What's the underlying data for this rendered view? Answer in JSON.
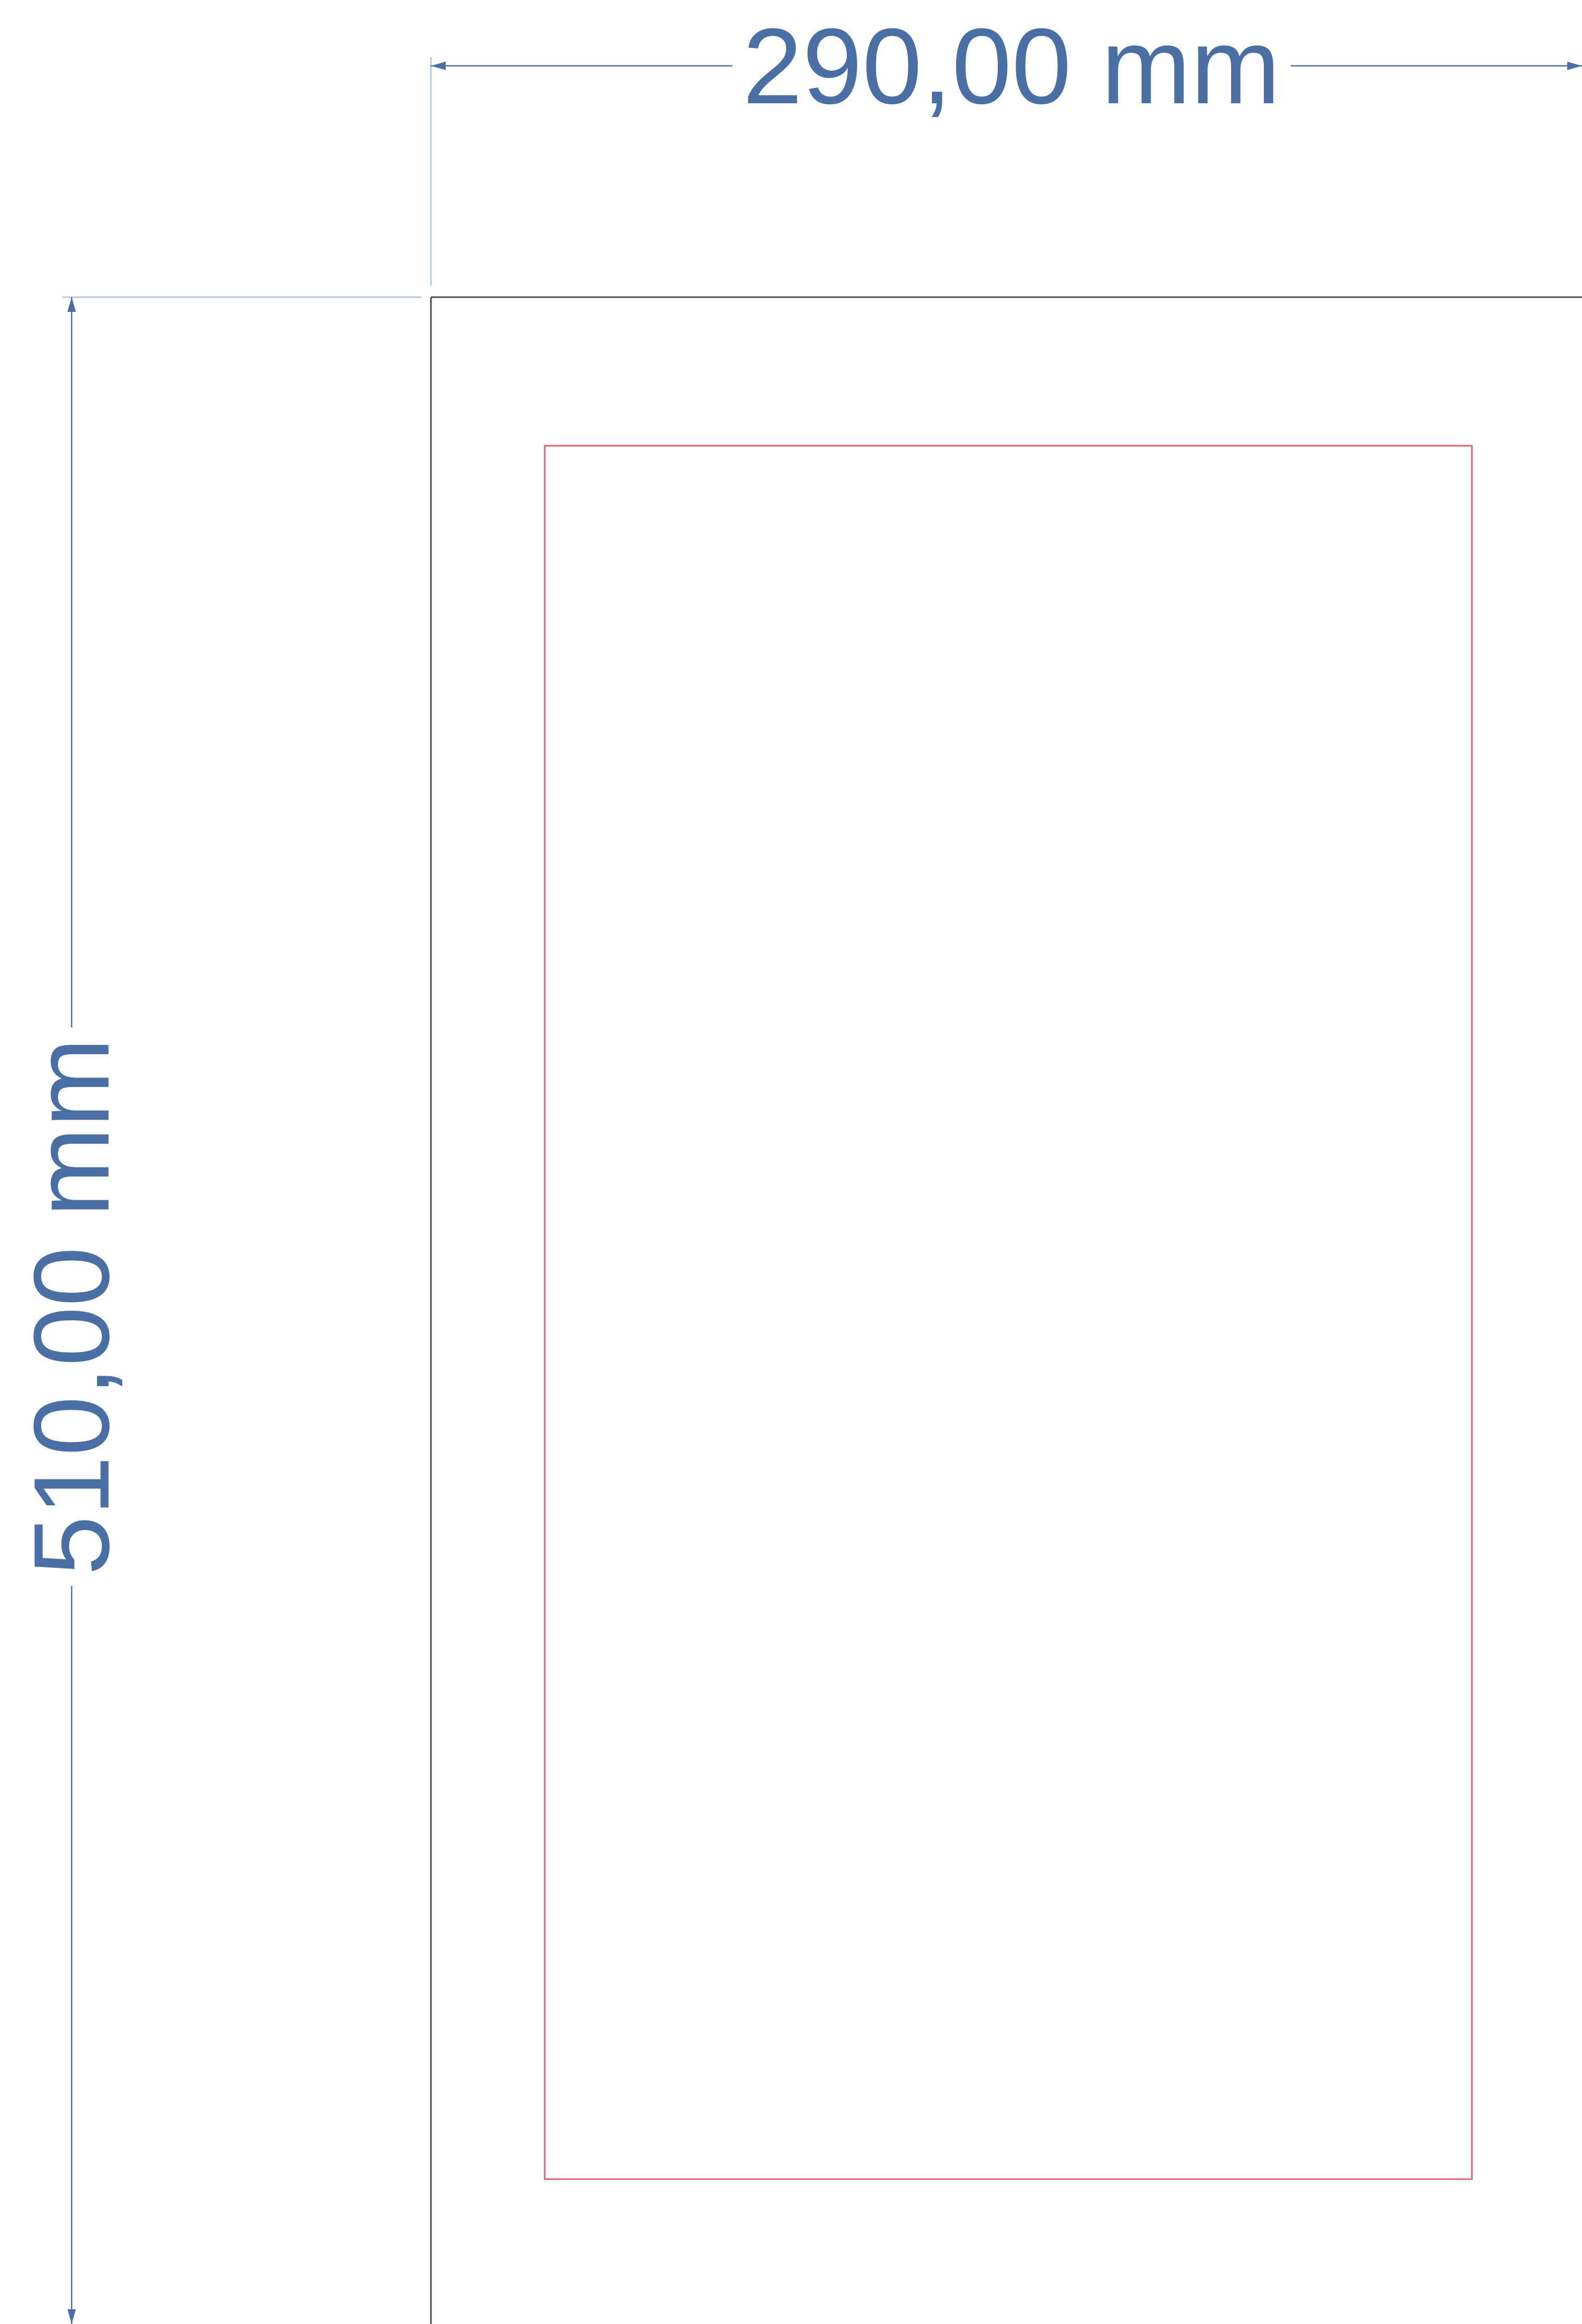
{
  "dimensions": {
    "width_label": "290,00 mm",
    "height_label": "510,00 mm"
  },
  "colors": {
    "dimension": "#4a6fa5",
    "extension_line": "#b8c8de",
    "sheet_border": "#4a4f57",
    "safe_area": "#e06070",
    "background": "#ffffff"
  }
}
